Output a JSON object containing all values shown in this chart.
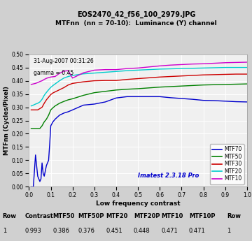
{
  "title1": "EOS2470_42_f56_100_2979.JPG",
  "title2": "MTFnn  (nn = 70-10):  Luminance (Y) channel",
  "xlabel": "Low frequency contrast",
  "ylabel": "MTFnn (Cycles/Pixel)",
  "annotation1": "31-Aug-2007 00:31:26",
  "annotation2": "gamma = 0.45",
  "watermark": "Imatest 2.3.18 Pro",
  "xlim": [
    0,
    1
  ],
  "ylim": [
    0,
    0.5
  ],
  "bg_color": "#d0d0d0",
  "plot_bg": "#f0f0f0",
  "table_header": [
    "Row",
    "Contrast",
    "MTF50",
    "MTF50P",
    "MTF20",
    "MTF20P",
    "MTF10",
    "MTF10P",
    "Row"
  ],
  "table_row1": [
    "1",
    "0.993",
    "0.386",
    "0.376",
    "0.451",
    "0.448",
    "0.471",
    "0.471",
    "1"
  ],
  "lines": {
    "MTF70": {
      "color": "#0000cc",
      "x": [
        0.01,
        0.02,
        0.03,
        0.04,
        0.05,
        0.055,
        0.06,
        0.065,
        0.07,
        0.075,
        0.08,
        0.085,
        0.09,
        0.095,
        0.1,
        0.11,
        0.12,
        0.14,
        0.16,
        0.18,
        0.2,
        0.25,
        0.3,
        0.35,
        0.4,
        0.45,
        0.5,
        0.55,
        0.6,
        0.65,
        0.7,
        0.75,
        0.8,
        0.85,
        0.9,
        0.95,
        1.0
      ],
      "y": [
        0.0,
        0.0,
        0.12,
        0.04,
        0.02,
        0.03,
        0.09,
        0.05,
        0.04,
        0.06,
        0.08,
        0.09,
        0.1,
        0.16,
        0.23,
        0.245,
        0.255,
        0.27,
        0.278,
        0.283,
        0.29,
        0.308,
        0.312,
        0.32,
        0.335,
        0.34,
        0.34,
        0.34,
        0.34,
        0.336,
        0.333,
        0.33,
        0.326,
        0.325,
        0.323,
        0.321,
        0.32
      ]
    },
    "MTF50": {
      "color": "#008000",
      "x": [
        0.01,
        0.02,
        0.03,
        0.04,
        0.05,
        0.06,
        0.07,
        0.08,
        0.09,
        0.1,
        0.11,
        0.12,
        0.14,
        0.16,
        0.18,
        0.2,
        0.25,
        0.3,
        0.35,
        0.4,
        0.45,
        0.5,
        0.55,
        0.6,
        0.65,
        0.7,
        0.75,
        0.8,
        0.85,
        0.9,
        0.95,
        1.0
      ],
      "y": [
        0.22,
        0.22,
        0.22,
        0.22,
        0.22,
        0.23,
        0.245,
        0.255,
        0.27,
        0.29,
        0.298,
        0.305,
        0.315,
        0.322,
        0.328,
        0.332,
        0.345,
        0.355,
        0.36,
        0.365,
        0.368,
        0.37,
        0.373,
        0.376,
        0.378,
        0.38,
        0.382,
        0.384,
        0.385,
        0.386,
        0.387,
        0.388
      ]
    },
    "MTF30": {
      "color": "#cc0000",
      "x": [
        0.01,
        0.02,
        0.03,
        0.04,
        0.05,
        0.06,
        0.07,
        0.08,
        0.09,
        0.1,
        0.11,
        0.12,
        0.14,
        0.16,
        0.18,
        0.2,
        0.25,
        0.3,
        0.35,
        0.4,
        0.45,
        0.5,
        0.55,
        0.6,
        0.65,
        0.7,
        0.75,
        0.8,
        0.85,
        0.9,
        0.95,
        1.0
      ],
      "y": [
        0.29,
        0.29,
        0.29,
        0.29,
        0.295,
        0.3,
        0.315,
        0.328,
        0.338,
        0.348,
        0.354,
        0.358,
        0.366,
        0.374,
        0.384,
        0.39,
        0.396,
        0.4,
        0.401,
        0.401,
        0.405,
        0.408,
        0.411,
        0.414,
        0.416,
        0.418,
        0.42,
        0.422,
        0.423,
        0.424,
        0.425,
        0.425
      ]
    },
    "MTF20": {
      "color": "#00cccc",
      "x": [
        0.01,
        0.02,
        0.03,
        0.04,
        0.05,
        0.06,
        0.07,
        0.08,
        0.09,
        0.1,
        0.11,
        0.12,
        0.14,
        0.16,
        0.18,
        0.2,
        0.25,
        0.3,
        0.35,
        0.4,
        0.45,
        0.5,
        0.55,
        0.6,
        0.65,
        0.7,
        0.75,
        0.8,
        0.85,
        0.9,
        0.95,
        1.0
      ],
      "y": [
        0.305,
        0.308,
        0.312,
        0.315,
        0.32,
        0.33,
        0.345,
        0.356,
        0.366,
        0.375,
        0.382,
        0.388,
        0.4,
        0.41,
        0.416,
        0.42,
        0.426,
        0.429,
        0.432,
        0.435,
        0.438,
        0.44,
        0.442,
        0.444,
        0.445,
        0.446,
        0.447,
        0.448,
        0.449,
        0.45,
        0.45,
        0.45
      ]
    },
    "MTF10": {
      "color": "#cc00cc",
      "x": [
        0.01,
        0.02,
        0.03,
        0.04,
        0.05,
        0.06,
        0.07,
        0.08,
        0.09,
        0.1,
        0.11,
        0.12,
        0.14,
        0.16,
        0.18,
        0.2,
        0.25,
        0.3,
        0.35,
        0.4,
        0.45,
        0.5,
        0.55,
        0.6,
        0.65,
        0.7,
        0.75,
        0.8,
        0.85,
        0.9,
        0.95,
        1.0
      ],
      "y": [
        0.386,
        0.388,
        0.39,
        0.393,
        0.397,
        0.4,
        0.405,
        0.409,
        0.412,
        0.414,
        0.415,
        0.416,
        0.428,
        0.436,
        0.438,
        0.41,
        0.43,
        0.44,
        0.442,
        0.442,
        0.446,
        0.448,
        0.452,
        0.456,
        0.459,
        0.461,
        0.463,
        0.464,
        0.466,
        0.468,
        0.469,
        0.47
      ]
    }
  },
  "legend_order": [
    "MTF70",
    "MTF50",
    "MTF30",
    "MTF20",
    "MTF10"
  ]
}
